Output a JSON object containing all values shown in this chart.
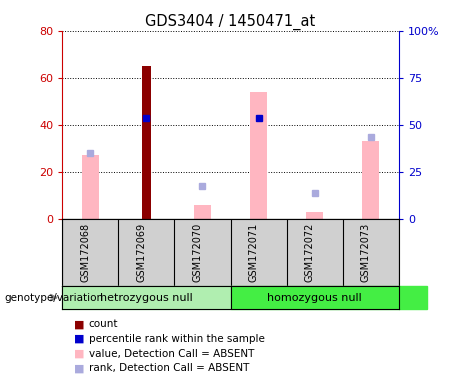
{
  "title": "GDS3404 / 1450471_at",
  "samples": [
    "GSM172068",
    "GSM172069",
    "GSM172070",
    "GSM172071",
    "GSM172072",
    "GSM172073"
  ],
  "group_labels": [
    "hetrozygous null",
    "homozygous null"
  ],
  "group_split": 3,
  "group_color_left": "#B0EEB0",
  "group_color_right": "#44EE44",
  "red_bars": [
    0,
    65,
    0,
    0,
    0,
    0
  ],
  "pink_bars": [
    27,
    0,
    6,
    54,
    3,
    33
  ],
  "blue_squares_left_scale": [
    0,
    43,
    0,
    43,
    0,
    0
  ],
  "lblue_squares_left_scale": [
    28,
    0,
    14,
    0,
    11,
    35
  ],
  "ylim_left": [
    0,
    80
  ],
  "ylim_right": [
    0,
    100
  ],
  "yticks_left": [
    0,
    20,
    40,
    60,
    80
  ],
  "yticks_right": [
    0,
    25,
    50,
    75,
    100
  ],
  "yticklabels_left": [
    "0",
    "20",
    "40",
    "60",
    "80"
  ],
  "yticklabels_right": [
    "0",
    "25",
    "50",
    "75",
    "100%"
  ],
  "left_axis_color": "#CC0000",
  "right_axis_color": "#0000CC",
  "legend_items": [
    {
      "label": "count",
      "color": "#8B0000"
    },
    {
      "label": "percentile rank within the sample",
      "color": "#0000CC"
    },
    {
      "label": "value, Detection Call = ABSENT",
      "color": "#FFB6C1"
    },
    {
      "label": "rank, Detection Call = ABSENT",
      "color": "#AAAADD"
    }
  ],
  "red_bar_width": 0.15,
  "pink_bar_width": 0.3,
  "square_size": 5
}
